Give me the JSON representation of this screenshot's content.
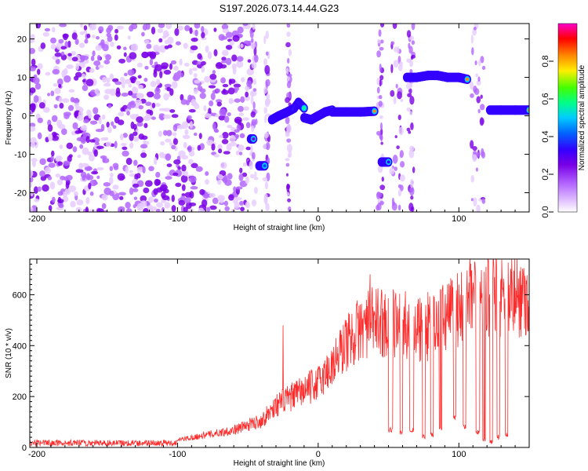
{
  "chart_data": [
    {
      "type": "heatmap",
      "title": "S197.2026.073.14.44.G23",
      "xlabel": "Height of straight line (km)",
      "ylabel": "Frequency (Hz)",
      "xlim": [
        -205,
        150
      ],
      "ylim": [
        -25,
        24
      ],
      "xticks": [
        -200,
        -100,
        0,
        100
      ],
      "yticks": [
        -20,
        -10,
        0,
        10,
        20
      ],
      "colorbar": {
        "label": "Normalized spectral amplitude",
        "range": [
          0,
          1
        ],
        "ticks": [
          0.0,
          0.2,
          0.4,
          0.6,
          0.8
        ],
        "colors": [
          "#ffffff",
          "#e6ccff",
          "#b366ff",
          "#7a00e6",
          "#3300ff",
          "#0044ff",
          "#00ccff",
          "#00ff88",
          "#44ff00",
          "#ffee00",
          "#ff8800",
          "#ff0000",
          "#ff00cc"
        ]
      },
      "noise_region": [
        -205,
        -48
      ],
      "tracks": [
        {
          "x": [
            -48,
            -46
          ],
          "y": [
            -6,
            -6
          ],
          "amp": 0.3
        },
        {
          "x": [
            -42,
            -38
          ],
          "y": [
            -13,
            -13
          ],
          "amp": 0.45
        },
        {
          "x": [
            -33,
            -28,
            -22,
            -17,
            -14,
            -10
          ],
          "y": [
            -1,
            0,
            1,
            2,
            3.5,
            2
          ],
          "amp": 0.55
        },
        {
          "x": [
            -10,
            -5,
            0,
            5,
            10
          ],
          "y": [
            -0.5,
            -1,
            0,
            1,
            1.5
          ],
          "amp": 0.6
        },
        {
          "x": [
            10,
            20,
            30,
            40
          ],
          "y": [
            1,
            1,
            1,
            1.2
          ],
          "amp": 0.8
        },
        {
          "x": [
            45,
            50
          ],
          "y": [
            -12,
            -12
          ],
          "amp": 0.4
        },
        {
          "x": [
            63,
            70,
            78,
            85,
            92,
            100,
            106
          ],
          "y": [
            10,
            10,
            10.5,
            10.5,
            10,
            10,
            9.5
          ],
          "amp": 0.8
        },
        {
          "x": [
            122,
            130,
            140,
            150
          ],
          "y": [
            1.5,
            1.5,
            1.5,
            1.5
          ],
          "amp": 0.75
        }
      ],
      "vertical_bands": [
        [
          -48,
          -44
        ],
        [
          -38,
          -35
        ],
        [
          -22,
          -20
        ],
        [
          42,
          46
        ],
        [
          52,
          60
        ],
        [
          64,
          68
        ],
        [
          108,
          118
        ]
      ]
    },
    {
      "type": "line",
      "xlabel": "Height of straight line (km)",
      "ylabel": "SNR (10 * v/v)",
      "xlim": [
        -205,
        150
      ],
      "ylim": [
        0,
        740
      ],
      "xticks": [
        -200,
        -100,
        0,
        100
      ],
      "yticks": [
        0,
        200,
        400,
        600
      ],
      "series": [
        {
          "name": "SNR",
          "color": "#ff2a2a",
          "envelope_x": [
            -205,
            -120,
            -100,
            -80,
            -60,
            -40,
            -30,
            -20,
            -10,
            0,
            10,
            20,
            30,
            40,
            50,
            60,
            70,
            80,
            90,
            100,
            110,
            120,
            130,
            140,
            150
          ],
          "envelope_y": [
            15,
            18,
            30,
            50,
            70,
            110,
            170,
            200,
            230,
            260,
            330,
            420,
            480,
            510,
            500,
            500,
            470,
            480,
            520,
            560,
            600,
            620,
            620,
            610,
            610
          ],
          "dropouts": [
            [
              50,
              53,
              60
            ],
            [
              58,
              60,
              50
            ],
            [
              65,
              68,
              60
            ],
            [
              74,
              76,
              30
            ],
            [
              80,
              82,
              40
            ],
            [
              86,
              88,
              60
            ],
            [
              96,
              98,
              110
            ],
            [
              103,
              105,
              70
            ],
            [
              112,
              115,
              50
            ],
            [
              117,
              119,
              20
            ],
            [
              122,
              124,
              10
            ],
            [
              127,
              129,
              30
            ],
            [
              133,
              135,
              40
            ]
          ],
          "spikes": [
            [
              -25,
              480
            ],
            [
              20,
              500
            ],
            [
              37,
              680
            ],
            [
              55,
              590
            ],
            [
              78,
              610
            ],
            [
              87,
              620
            ],
            [
              95,
              650
            ],
            [
              100,
              640
            ],
            [
              108,
              740
            ],
            [
              118,
              690
            ]
          ]
        }
      ]
    }
  ]
}
